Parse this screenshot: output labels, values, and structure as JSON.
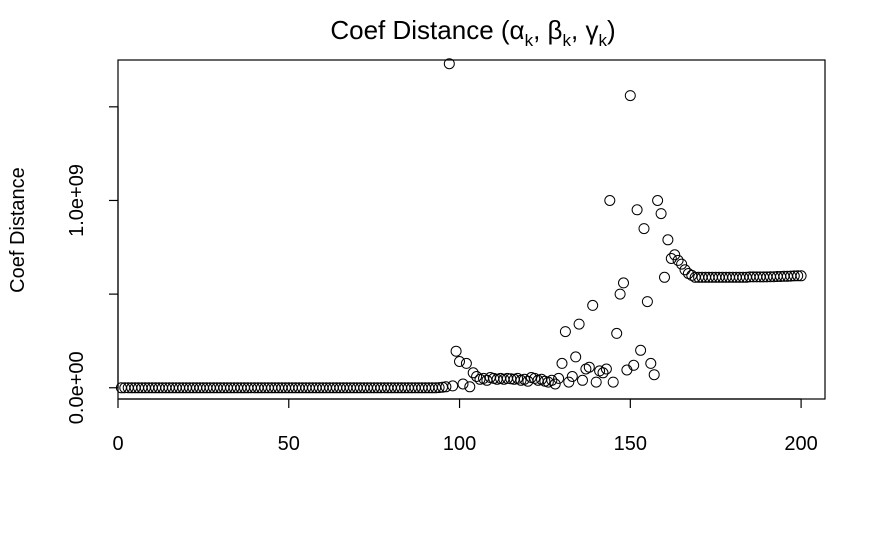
{
  "chart_data": {
    "type": "scatter",
    "title": "Coef Distance (αk, βk, γk)",
    "title_parts": {
      "prefix": "Coef Distance (",
      "alpha": "α",
      "beta": "β",
      "gamma": "γ",
      "sub": "k",
      "sep": ", ",
      "suffix": ")"
    },
    "xlabel": "",
    "ylabel": "Coef Distance",
    "xlim": [
      0,
      207
    ],
    "ylim": [
      -60000000,
      1750000000
    ],
    "x_ticks": [
      0,
      50,
      100,
      150,
      200
    ],
    "x_tick_labels": [
      "0",
      "50",
      "100",
      "150",
      "200"
    ],
    "y_ticks": [
      0,
      500000000,
      1000000000,
      1500000000
    ],
    "y_tick_labels": [
      "0.0e+00",
      "",
      "1.0e+09",
      ""
    ],
    "grid": false,
    "points": [
      [
        1,
        0
      ],
      [
        2,
        0
      ],
      [
        3,
        0
      ],
      [
        4,
        0
      ],
      [
        5,
        0
      ],
      [
        6,
        0
      ],
      [
        7,
        0
      ],
      [
        8,
        0
      ],
      [
        9,
        0
      ],
      [
        10,
        0
      ],
      [
        11,
        0
      ],
      [
        12,
        0
      ],
      [
        13,
        0
      ],
      [
        14,
        0
      ],
      [
        15,
        0
      ],
      [
        16,
        0
      ],
      [
        17,
        0
      ],
      [
        18,
        0
      ],
      [
        19,
        0
      ],
      [
        20,
        0
      ],
      [
        21,
        0
      ],
      [
        22,
        0
      ],
      [
        23,
        0
      ],
      [
        24,
        0
      ],
      [
        25,
        0
      ],
      [
        26,
        0
      ],
      [
        27,
        0
      ],
      [
        28,
        0
      ],
      [
        29,
        0
      ],
      [
        30,
        0
      ],
      [
        31,
        0
      ],
      [
        32,
        0
      ],
      [
        33,
        0
      ],
      [
        34,
        0
      ],
      [
        35,
        0
      ],
      [
        36,
        0
      ],
      [
        37,
        0
      ],
      [
        38,
        0
      ],
      [
        39,
        0
      ],
      [
        40,
        0
      ],
      [
        41,
        0
      ],
      [
        42,
        0
      ],
      [
        43,
        0
      ],
      [
        44,
        0
      ],
      [
        45,
        0
      ],
      [
        46,
        0
      ],
      [
        47,
        0
      ],
      [
        48,
        0
      ],
      [
        49,
        0
      ],
      [
        50,
        0
      ],
      [
        51,
        0
      ],
      [
        52,
        0
      ],
      [
        53,
        0
      ],
      [
        54,
        0
      ],
      [
        55,
        0
      ],
      [
        56,
        0
      ],
      [
        57,
        0
      ],
      [
        58,
        0
      ],
      [
        59,
        0
      ],
      [
        60,
        0
      ],
      [
        61,
        0
      ],
      [
        62,
        0
      ],
      [
        63,
        0
      ],
      [
        64,
        0
      ],
      [
        65,
        0
      ],
      [
        66,
        0
      ],
      [
        67,
        0
      ],
      [
        68,
        0
      ],
      [
        69,
        0
      ],
      [
        70,
        0
      ],
      [
        71,
        0
      ],
      [
        72,
        0
      ],
      [
        73,
        0
      ],
      [
        74,
        0
      ],
      [
        75,
        0
      ],
      [
        76,
        0
      ],
      [
        77,
        0
      ],
      [
        78,
        0
      ],
      [
        79,
        0
      ],
      [
        80,
        0
      ],
      [
        81,
        0
      ],
      [
        82,
        0
      ],
      [
        83,
        0
      ],
      [
        84,
        0
      ],
      [
        85,
        0
      ],
      [
        86,
        0
      ],
      [
        87,
        0
      ],
      [
        88,
        0
      ],
      [
        89,
        0
      ],
      [
        90,
        0
      ],
      [
        91,
        0
      ],
      [
        92,
        0
      ],
      [
        93,
        0
      ],
      [
        94,
        1000000
      ],
      [
        95,
        3000000
      ],
      [
        96,
        5000000
      ],
      [
        97,
        1730000000
      ],
      [
        98,
        10000000
      ],
      [
        99,
        195000000
      ],
      [
        100,
        140000000
      ],
      [
        101,
        20000000
      ],
      [
        102,
        130000000
      ],
      [
        103,
        5000000
      ],
      [
        104,
        80000000
      ],
      [
        105,
        60000000
      ],
      [
        106,
        45000000
      ],
      [
        107,
        50000000
      ],
      [
        108,
        40000000
      ],
      [
        109,
        55000000
      ],
      [
        110,
        50000000
      ],
      [
        111,
        45000000
      ],
      [
        112,
        50000000
      ],
      [
        113,
        45000000
      ],
      [
        114,
        50000000
      ],
      [
        115,
        48000000
      ],
      [
        116,
        45000000
      ],
      [
        117,
        50000000
      ],
      [
        118,
        40000000
      ],
      [
        119,
        45000000
      ],
      [
        120,
        35000000
      ],
      [
        121,
        55000000
      ],
      [
        122,
        50000000
      ],
      [
        123,
        40000000
      ],
      [
        124,
        45000000
      ],
      [
        125,
        35000000
      ],
      [
        126,
        30000000
      ],
      [
        127,
        40000000
      ],
      [
        128,
        20000000
      ],
      [
        129,
        50000000
      ],
      [
        130,
        130000000
      ],
      [
        131,
        300000000
      ],
      [
        132,
        30000000
      ],
      [
        133,
        60000000
      ],
      [
        134,
        165000000
      ],
      [
        135,
        340000000
      ],
      [
        136,
        40000000
      ],
      [
        137,
        100000000
      ],
      [
        138,
        110000000
      ],
      [
        139,
        440000000
      ],
      [
        140,
        30000000
      ],
      [
        141,
        90000000
      ],
      [
        142,
        80000000
      ],
      [
        143,
        100000000
      ],
      [
        144,
        1000000000
      ],
      [
        145,
        30000000
      ],
      [
        146,
        290000000
      ],
      [
        147,
        500000000
      ],
      [
        148,
        560000000
      ],
      [
        149,
        95000000
      ],
      [
        150,
        1560000000
      ],
      [
        151,
        120000000
      ],
      [
        152,
        950000000
      ],
      [
        153,
        200000000
      ],
      [
        154,
        850000000
      ],
      [
        155,
        460000000
      ],
      [
        156,
        130000000
      ],
      [
        157,
        70000000
      ],
      [
        158,
        1000000000
      ],
      [
        159,
        930000000
      ],
      [
        160,
        590000000
      ],
      [
        161,
        790000000
      ],
      [
        162,
        690000000
      ],
      [
        163,
        710000000
      ],
      [
        164,
        680000000
      ],
      [
        165,
        660000000
      ],
      [
        166,
        630000000
      ],
      [
        167,
        610000000
      ],
      [
        168,
        600000000
      ],
      [
        169,
        590000000
      ],
      [
        170,
        590000000
      ],
      [
        171,
        590000000
      ],
      [
        172,
        590000000
      ],
      [
        173,
        590000000
      ],
      [
        174,
        590000000
      ],
      [
        175,
        590000000
      ],
      [
        176,
        590000000
      ],
      [
        177,
        590000000
      ],
      [
        178,
        590000000
      ],
      [
        179,
        590000000
      ],
      [
        180,
        590000000
      ],
      [
        181,
        590000000
      ],
      [
        182,
        590000000
      ],
      [
        183,
        590000000
      ],
      [
        184,
        590000000
      ],
      [
        185,
        592000000
      ],
      [
        186,
        592000000
      ],
      [
        187,
        592000000
      ],
      [
        188,
        592000000
      ],
      [
        189,
        592000000
      ],
      [
        190,
        592000000
      ],
      [
        191,
        593000000
      ],
      [
        192,
        593000000
      ],
      [
        193,
        594000000
      ],
      [
        194,
        594000000
      ],
      [
        195,
        595000000
      ],
      [
        196,
        595000000
      ],
      [
        197,
        596000000
      ],
      [
        198,
        597000000
      ],
      [
        199,
        598000000
      ],
      [
        200,
        598000000
      ]
    ]
  }
}
